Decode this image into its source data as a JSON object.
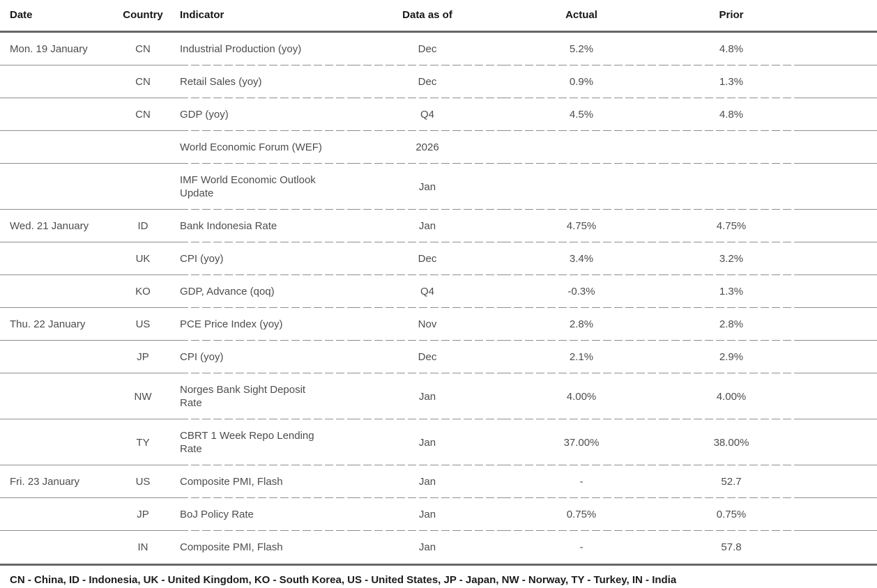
{
  "chart_data": {
    "type": "table",
    "title": "",
    "columns": [
      "Date",
      "Country",
      "Indicator",
      "Data as of",
      "Actual",
      "Prior"
    ],
    "rows": [
      [
        "Mon. 19 January",
        "CN",
        "Industrial Production (yoy)",
        "Dec",
        "5.2%",
        "4.8%"
      ],
      [
        "",
        "CN",
        "Retail Sales (yoy)",
        "Dec",
        "0.9%",
        "1.3%"
      ],
      [
        "",
        "CN",
        "GDP (yoy)",
        "Q4",
        "4.5%",
        "4.8%"
      ],
      [
        "",
        "",
        "World Economic Forum (WEF)",
        "2026",
        "",
        ""
      ],
      [
        "",
        "",
        "IMF World Economic Outlook Update",
        "Jan",
        "",
        ""
      ],
      [
        "Wed. 21 January",
        "ID",
        "Bank Indonesia Rate",
        "Jan",
        "4.75%",
        "4.75%"
      ],
      [
        "",
        "UK",
        "CPI (yoy)",
        "Dec",
        "3.4%",
        "3.2%"
      ],
      [
        "",
        "KO",
        "GDP, Advance (qoq)",
        "Q4",
        "-0.3%",
        "1.3%"
      ],
      [
        "Thu. 22 January",
        "US",
        "PCE Price Index (yoy)",
        "Nov",
        "2.8%",
        "2.8%"
      ],
      [
        "",
        "JP",
        "CPI (yoy)",
        "Dec",
        "2.1%",
        "2.9%"
      ],
      [
        "",
        "NW",
        "Norges Bank Sight Deposit Rate",
        "Jan",
        "4.00%",
        "4.00%"
      ],
      [
        "",
        "TY",
        "CBRT 1 Week Repo Lending Rate",
        "Jan",
        "37.00%",
        "38.00%"
      ],
      [
        "Fri. 23 January",
        "US",
        "Composite PMI, Flash",
        "Jan",
        "-",
        "52.7"
      ],
      [
        "",
        "JP",
        "BoJ Policy Rate",
        "Jan",
        "0.75%",
        "0.75%"
      ],
      [
        "",
        "IN",
        "Composite PMI, Flash",
        "Jan",
        "-",
        "57.8"
      ]
    ],
    "footnote": "CN - China, ID - Indonesia, UK - United Kingdom, KO - South Korea, US - United States, JP - Japan, NW - Norway, TY - Turkey, IN - India",
    "layout_hints": {
      "grid": "horizontal row separators only",
      "header_rule": "thick gray",
      "bottom_rule": "thick gray"
    }
  },
  "table": {
    "headers": {
      "date": "Date",
      "country": "Country",
      "indicator": "Indicator",
      "data_as_of": "Data as of",
      "actual": "Actual",
      "prior": "Prior"
    },
    "rows": [
      {
        "date": "Mon. 19 January",
        "country": "CN",
        "indicator": "Industrial Production (yoy)",
        "data_as_of": "Dec",
        "actual": "5.2%",
        "prior": "4.8%"
      },
      {
        "date": "",
        "country": "CN",
        "indicator": "Retail Sales (yoy)",
        "data_as_of": "Dec",
        "actual": "0.9%",
        "prior": "1.3%"
      },
      {
        "date": "",
        "country": "CN",
        "indicator": "GDP (yoy)",
        "data_as_of": "Q4",
        "actual": "4.5%",
        "prior": "4.8%"
      },
      {
        "date": "",
        "country": "",
        "indicator": "World Economic Forum (WEF)",
        "data_as_of": "2026",
        "actual": "",
        "prior": ""
      },
      {
        "date": "",
        "country": "",
        "indicator": "IMF World Economic Outlook\nUpdate",
        "data_as_of": "Jan",
        "actual": "",
        "prior": ""
      },
      {
        "date": "Wed. 21 January",
        "country": "ID",
        "indicator": "Bank Indonesia Rate",
        "data_as_of": "Jan",
        "actual": "4.75%",
        "prior": "4.75%"
      },
      {
        "date": "",
        "country": "UK",
        "indicator": "CPI (yoy)",
        "data_as_of": "Dec",
        "actual": "3.4%",
        "prior": "3.2%"
      },
      {
        "date": "",
        "country": "KO",
        "indicator": "GDP, Advance (qoq)",
        "data_as_of": "Q4",
        "actual": "-0.3%",
        "prior": "1.3%"
      },
      {
        "date": "Thu. 22 January",
        "country": "US",
        "indicator": "PCE Price Index (yoy)",
        "data_as_of": "Nov",
        "actual": "2.8%",
        "prior": "2.8%"
      },
      {
        "date": "",
        "country": "JP",
        "indicator": "CPI (yoy)",
        "data_as_of": "Dec",
        "actual": "2.1%",
        "prior": "2.9%"
      },
      {
        "date": "",
        "country": "NW",
        "indicator": "Norges Bank Sight Deposit\nRate",
        "data_as_of": "Jan",
        "actual": "4.00%",
        "prior": "4.00%"
      },
      {
        "date": "",
        "country": "TY",
        "indicator": "CBRT 1 Week Repo Lending\nRate",
        "data_as_of": "Jan",
        "actual": "37.00%",
        "prior": "38.00%"
      },
      {
        "date": "Fri. 23 January",
        "country": "US",
        "indicator": "Composite PMI, Flash",
        "data_as_of": "Jan",
        "actual": "-",
        "prior": "52.7"
      },
      {
        "date": "",
        "country": "JP",
        "indicator": "BoJ Policy Rate",
        "data_as_of": "Jan",
        "actual": "0.75%",
        "prior": "0.75%"
      },
      {
        "date": "",
        "country": "IN",
        "indicator": "Composite PMI, Flash",
        "data_as_of": "Jan",
        "actual": "-",
        "prior": "57.8"
      }
    ]
  },
  "footer": {
    "legend": "CN - China, ID - Indonesia, UK - United Kingdom, KO - South Korea, US - United States, JP - Japan, NW - Norway, TY - Turkey, IN - India"
  },
  "colors": {
    "header_text": "#161616",
    "body_text": "#4d4d4d",
    "rule_thick": "#666666",
    "rule_thin": "#8e8e8e",
    "background": "#ffffff"
  }
}
